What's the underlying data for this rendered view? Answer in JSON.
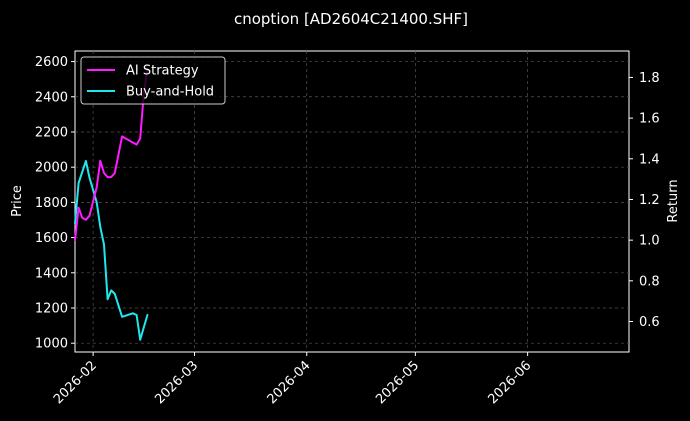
{
  "chart_data": {
    "type": "line",
    "title": "cnoption [AD2604C21400.SHF]",
    "xlabel": "",
    "ylabel": "Price",
    "ylabel_right": "Return",
    "x_ticks": [
      "2026-02",
      "2026-03",
      "2026-04",
      "2026-05",
      "2026-06"
    ],
    "y_ticks_left": [
      "1000",
      "1200",
      "1400",
      "1600",
      "1800",
      "2000",
      "2200",
      "2400",
      "2600"
    ],
    "y_ticks_right": [
      "0.6",
      "0.8",
      "1.0",
      "1.2",
      "1.4",
      "1.6",
      "1.8"
    ],
    "xlim": [
      "2026-01-27",
      "2026-06-29"
    ],
    "ylim_left": [
      950,
      2660
    ],
    "ylim_right": [
      0.45,
      1.93
    ],
    "grid": true,
    "legend_position": "top-left",
    "series": [
      {
        "name": "AI Strategy",
        "axis": "right",
        "color": "#ff1aff",
        "points": [
          [
            "2026-01-27",
            1.0
          ],
          [
            "2026-01-28",
            1.16
          ],
          [
            "2026-01-29",
            1.11
          ],
          [
            "2026-01-30",
            1.1
          ],
          [
            "2026-01-31",
            1.12
          ],
          [
            "2026-02-02",
            1.26
          ],
          [
            "2026-02-03",
            1.39
          ],
          [
            "2026-02-04",
            1.33
          ],
          [
            "2026-02-05",
            1.31
          ],
          [
            "2026-02-06",
            1.31
          ],
          [
            "2026-02-07",
            1.33
          ],
          [
            "2026-02-09",
            1.51
          ],
          [
            "2026-02-10",
            1.5
          ],
          [
            "2026-02-13",
            1.47
          ],
          [
            "2026-02-14",
            1.5
          ],
          [
            "2026-02-15",
            1.72
          ],
          [
            "2026-02-16",
            1.84
          ]
        ]
      },
      {
        "name": "Buy-and-Hold",
        "axis": "left",
        "color": "#1ee8ee",
        "points": [
          [
            "2026-01-27",
            1680
          ],
          [
            "2026-01-28",
            1910
          ],
          [
            "2026-01-30",
            2035
          ],
          [
            "2026-01-31",
            1940
          ],
          [
            "2026-02-02",
            1800
          ],
          [
            "2026-02-03",
            1660
          ],
          [
            "2026-02-04",
            1560
          ],
          [
            "2026-02-05",
            1250
          ],
          [
            "2026-02-06",
            1300
          ],
          [
            "2026-02-07",
            1280
          ],
          [
            "2026-02-09",
            1150
          ],
          [
            "2026-02-12",
            1170
          ],
          [
            "2026-02-13",
            1160
          ],
          [
            "2026-02-14",
            1020
          ],
          [
            "2026-02-15",
            1090
          ],
          [
            "2026-02-16",
            1160
          ]
        ]
      }
    ]
  }
}
